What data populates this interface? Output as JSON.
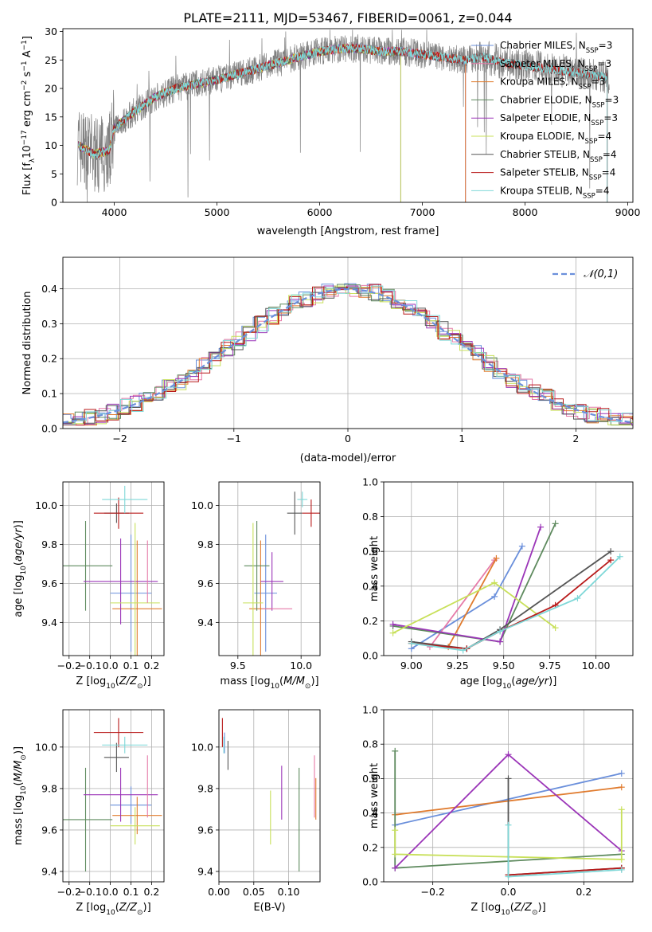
{
  "figure_title": "PLATE=2111, MJD=53467, FIBERID=0061, z=0.044",
  "colors": {
    "chabrier_miles": "#6a8fdb",
    "salpeter_miles": "#e67aa8",
    "kroupa_miles": "#e07b2e",
    "chabrier_elodie": "#5e8a5e",
    "salpeter_elodie": "#9b35b8",
    "kroupa_elodie": "#c8e05a",
    "chabrier_stelib": "#555555",
    "salpeter_stelib": "#b81a1a",
    "kroupa_stelib": "#7fd8d8",
    "data": "#808080",
    "normal_curve": "#6a8fdb"
  },
  "chart_data": [
    {
      "id": "spectrum",
      "type": "line",
      "xlabel": "wavelength [Angstrom, rest frame]",
      "ylabel": "Flux [f_λ10^-17 erg cm^-2 s^-1 A^-1]",
      "xlim": [
        3500,
        9050
      ],
      "ylim": [
        0,
        30.5
      ],
      "xticks": [
        4000,
        5000,
        6000,
        7000,
        8000,
        9000
      ],
      "yticks": [
        0,
        5,
        10,
        15,
        20,
        25,
        30
      ],
      "legend": [
        {
          "label": "Chabrier MILES, N",
          "sub": "SSP",
          "val": "=3",
          "color": "#6a8fdb"
        },
        {
          "label": "Salpeter MILES, N",
          "sub": "SSP",
          "val": "=3",
          "color": "#e67aa8"
        },
        {
          "label": "Kroupa MILES, N",
          "sub": "SSP",
          "val": "=3",
          "color": "#e07b2e"
        },
        {
          "label": "Chabrier ELODIE, N",
          "sub": "SSP",
          "val": "=3",
          "color": "#5e8a5e"
        },
        {
          "label": "Salpeter ELODIE, N",
          "sub": "SSP",
          "val": "=3",
          "color": "#9b35b8"
        },
        {
          "label": "Kroupa ELODIE, N",
          "sub": "SSP",
          "val": "=4",
          "color": "#c8e05a"
        },
        {
          "label": "Chabrier STELIB, N",
          "sub": "SSP",
          "val": "=4",
          "color": "#555555"
        },
        {
          "label": "Salpeter STELIB, N",
          "sub": "SSP",
          "val": "=4",
          "color": "#b81a1a"
        },
        {
          "label": "Kroupa STELIB, N",
          "sub": "SSP",
          "val": "=4",
          "color": "#7fd8d8"
        }
      ],
      "continuum": [
        [
          3650,
          10
        ],
        [
          3800,
          8.5
        ],
        [
          3950,
          9
        ],
        [
          4000,
          13
        ],
        [
          4200,
          16
        ],
        [
          4400,
          18.5
        ],
        [
          4600,
          20
        ],
        [
          4800,
          20.8
        ],
        [
          5000,
          21.5
        ],
        [
          5200,
          22.5
        ],
        [
          5400,
          23.5
        ],
        [
          5600,
          24.5
        ],
        [
          5800,
          25.5
        ],
        [
          6000,
          26.5
        ],
        [
          6200,
          27
        ],
        [
          6400,
          27
        ],
        [
          6600,
          26.5
        ],
        [
          6800,
          26.5
        ],
        [
          7000,
          26
        ],
        [
          7200,
          25.5
        ],
        [
          7400,
          25
        ],
        [
          7600,
          25.5
        ],
        [
          7800,
          24.5
        ],
        [
          8000,
          24
        ],
        [
          8200,
          23.5
        ],
        [
          8400,
          23
        ],
        [
          8600,
          22.5
        ],
        [
          8800,
          22
        ]
      ],
      "miles_range": [
        3650,
        7420
      ],
      "elodie_range": [
        3650,
        6790
      ],
      "stelib_range": [
        3650,
        8800
      ],
      "data_range": [
        3640,
        8820
      ]
    },
    {
      "id": "residuals",
      "type": "histogram",
      "xlabel": "(data-model)/error",
      "ylabel": "Normed distribution",
      "xlim": [
        -2.5,
        2.5
      ],
      "ylim": [
        0,
        0.49
      ],
      "xticks": [
        -2,
        -1,
        0,
        1,
        2
      ],
      "yticks": [
        0.0,
        0.1,
        0.2,
        0.3,
        0.4
      ],
      "legend": "𝒩(0,1)",
      "bin_width": 0.1
    },
    {
      "id": "age_vs_Z",
      "type": "errorbar",
      "xlabel": "Z [log10(Z/Z⊙)]",
      "ylabel": "age [log10(age/yr)]",
      "xlim": [
        -0.23,
        0.26
      ],
      "ylim": [
        9.23,
        10.12
      ],
      "xticks": [
        -0.2,
        -0.1,
        0.0,
        0.1,
        0.2
      ],
      "yticks": [
        9.4,
        9.6,
        9.8,
        10.0
      ],
      "points": [
        {
          "color": "#6a8fdb",
          "x": 0.1,
          "xerr": 0.1,
          "y": 9.55,
          "yerr": 0.3
        },
        {
          "color": "#e07b2e",
          "x": 0.13,
          "xerr": 0.12,
          "y": 9.47,
          "yerr": 0.35
        },
        {
          "color": "#5e8a5e",
          "x": -0.12,
          "xerr": 0.13,
          "y": 9.69,
          "yerr": 0.23
        },
        {
          "color": "#9b35b8",
          "x": 0.05,
          "xerr": 0.18,
          "y": 9.61,
          "yerr": 0.22
        },
        {
          "color": "#c8e05a",
          "x": 0.12,
          "xerr": 0.12,
          "y": 9.5,
          "yerr": 0.41
        },
        {
          "color": "#555555",
          "x": 0.03,
          "xerr": 0.06,
          "y": 9.96,
          "yerr": 0.05
        },
        {
          "color": "#b81a1a",
          "x": 0.04,
          "xerr": 0.12,
          "y": 9.96,
          "yerr": 0.08
        },
        {
          "color": "#7fd8d8",
          "x": 0.07,
          "xerr": 0.11,
          "y": 10.03,
          "yerr": 0.07
        },
        {
          "color": "#e67aa8",
          "x": 0.18,
          "xerr": 0.0,
          "y": 9.66,
          "yerr": 0.16
        }
      ]
    },
    {
      "id": "age_vs_mass",
      "type": "errorbar",
      "xlabel": "mass [log10(M/M⊙)]",
      "ylabel": "",
      "xlim": [
        9.35,
        10.15
      ],
      "ylim": [
        9.23,
        10.12
      ],
      "xticks": [
        9.5,
        10.0
      ],
      "yticks": [
        9.4,
        9.6,
        9.8,
        10.0
      ],
      "points": [
        {
          "color": "#6a8fdb",
          "x": 9.72,
          "xerr": 0.09,
          "y": 9.55,
          "yerr": 0.3
        },
        {
          "color": "#e07b2e",
          "x": 9.68,
          "xerr": 0.09,
          "y": 9.47,
          "yerr": 0.35
        },
        {
          "color": "#5e8a5e",
          "x": 9.65,
          "xerr": 0.1,
          "y": 9.69,
          "yerr": 0.23
        },
        {
          "color": "#9b35b8",
          "x": 9.77,
          "xerr": 0.09,
          "y": 9.61,
          "yerr": 0.15
        },
        {
          "color": "#c8e05a",
          "x": 9.62,
          "xerr": 0.08,
          "y": 9.5,
          "yerr": 0.41
        },
        {
          "color": "#555555",
          "x": 9.95,
          "xerr": 0.06,
          "y": 9.96,
          "yerr": 0.11
        },
        {
          "color": "#b81a1a",
          "x": 10.08,
          "xerr": 0.07,
          "y": 9.96,
          "yerr": 0.07
        },
        {
          "color": "#7fd8d8",
          "x": 10.01,
          "xerr": 0.04,
          "y": 10.03,
          "yerr": 0.04
        },
        {
          "color": "#e67aa8",
          "x": 9.81,
          "xerr": 0.12,
          "y": 9.47,
          "yerr": 0.0
        }
      ]
    },
    {
      "id": "mass_weight_vs_age",
      "type": "line",
      "xlabel": "age [log10(age/yr)]",
      "ylabel": "mass weight",
      "xlim": [
        8.85,
        10.2
      ],
      "ylim": [
        0.0,
        1.0
      ],
      "xticks": [
        9.0,
        9.25,
        9.5,
        9.75,
        10.0
      ],
      "yticks": [
        0.0,
        0.2,
        0.4,
        0.6,
        0.8,
        1.0
      ],
      "grid": true,
      "series": [
        {
          "color": "#6a8fdb",
          "x": [
            9.0,
            9.45,
            9.6
          ],
          "y": [
            0.04,
            0.34,
            0.63
          ]
        },
        {
          "color": "#e67aa8",
          "x": [
            9.1,
            9.45
          ],
          "y": [
            0.05,
            0.55
          ]
        },
        {
          "color": "#e07b2e",
          "x": [
            9.2,
            9.46
          ],
          "y": [
            0.05,
            0.56
          ]
        },
        {
          "color": "#5e8a5e",
          "x": [
            8.9,
            9.48,
            9.78
          ],
          "y": [
            0.17,
            0.08,
            0.76
          ]
        },
        {
          "color": "#9b35b8",
          "x": [
            8.9,
            9.48,
            9.7
          ],
          "y": [
            0.18,
            0.08,
            0.74
          ]
        },
        {
          "color": "#c8e05a",
          "x": [
            8.9,
            9.45,
            9.78
          ],
          "y": [
            0.13,
            0.42,
            0.16
          ]
        },
        {
          "color": "#555555",
          "x": [
            9.0,
            9.3,
            9.48,
            10.08
          ],
          "y": [
            0.08,
            0.04,
            0.15,
            0.6
          ]
        },
        {
          "color": "#b81a1a",
          "x": [
            9.0,
            9.3,
            9.48,
            9.78,
            10.08
          ],
          "y": [
            0.07,
            0.04,
            0.14,
            0.29,
            0.55
          ]
        },
        {
          "color": "#7fd8d8",
          "x": [
            9.0,
            9.28,
            9.48,
            9.9,
            10.13
          ],
          "y": [
            0.07,
            0.03,
            0.14,
            0.33,
            0.57
          ]
        }
      ]
    },
    {
      "id": "mass_vs_Z",
      "type": "errorbar",
      "xlabel": "Z [log10(Z/Z⊙)]",
      "ylabel": "mass [log10(M/M⊙)]",
      "xlim": [
        -0.23,
        0.26
      ],
      "ylim": [
        9.35,
        10.18
      ],
      "xticks": [
        -0.2,
        -0.1,
        0.0,
        0.1,
        0.2
      ],
      "yticks": [
        9.4,
        9.6,
        9.8,
        10.0
      ],
      "points": [
        {
          "color": "#6a8fdb",
          "x": 0.1,
          "xerr": 0.1,
          "y": 9.72,
          "yerr": 0.09
        },
        {
          "color": "#e07b2e",
          "x": 0.13,
          "xerr": 0.12,
          "y": 9.67,
          "yerr": 0.09
        },
        {
          "color": "#5e8a5e",
          "x": -0.12,
          "xerr": 0.13,
          "y": 9.65,
          "yerr": 0.25
        },
        {
          "color": "#9b35b8",
          "x": 0.05,
          "xerr": 0.18,
          "y": 9.77,
          "yerr": 0.13
        },
        {
          "color": "#c8e05a",
          "x": 0.12,
          "xerr": 0.12,
          "y": 9.62,
          "yerr": 0.09
        },
        {
          "color": "#555555",
          "x": 0.03,
          "xerr": 0.06,
          "y": 9.95,
          "yerr": 0.07
        },
        {
          "color": "#b81a1a",
          "x": 0.04,
          "xerr": 0.12,
          "y": 10.07,
          "yerr": 0.07
        },
        {
          "color": "#7fd8d8",
          "x": 0.07,
          "xerr": 0.11,
          "y": 10.01,
          "yerr": 0.04
        },
        {
          "color": "#e67aa8",
          "x": 0.18,
          "xerr": 0.0,
          "y": 9.81,
          "yerr": 0.15
        }
      ]
    },
    {
      "id": "mass_vs_EBV",
      "type": "errorbar",
      "xlabel": "E(B-V)",
      "ylabel": "",
      "xlim": [
        0.0,
        0.145
      ],
      "ylim": [
        9.35,
        10.18
      ],
      "xticks": [
        0.0,
        0.05,
        0.1
      ],
      "xticklabels": [
        "0.00",
        "0.05",
        "0.10"
      ],
      "yticks": [
        9.4,
        9.6,
        9.8,
        10.0
      ],
      "points": [
        {
          "color": "#6a8fdb",
          "x": 0.008,
          "xerr": 0.0,
          "y": 10.02,
          "yerr": 0.05
        },
        {
          "color": "#e67aa8",
          "x": 0.137,
          "xerr": 0.0,
          "y": 9.81,
          "yerr": 0.15
        },
        {
          "color": "#e07b2e",
          "x": 0.139,
          "xerr": 0.0,
          "y": 9.75,
          "yerr": 0.1
        },
        {
          "color": "#5e8a5e",
          "x": 0.115,
          "xerr": 0.0,
          "y": 9.65,
          "yerr": 0.25
        },
        {
          "color": "#9b35b8",
          "x": 0.09,
          "xerr": 0.0,
          "y": 9.78,
          "yerr": 0.13
        },
        {
          "color": "#c8e05a",
          "x": 0.074,
          "xerr": 0.0,
          "y": 9.66,
          "yerr": 0.13
        },
        {
          "color": "#555555",
          "x": 0.013,
          "xerr": 0.0,
          "y": 9.96,
          "yerr": 0.07
        },
        {
          "color": "#b81a1a",
          "x": 0.005,
          "xerr": 0.0,
          "y": 10.07,
          "yerr": 0.07
        },
        {
          "color": "#7fd8d8",
          "x": 0.007,
          "xerr": 0.0,
          "y": 10.01,
          "yerr": 0.04
        }
      ]
    },
    {
      "id": "mass_weight_vs_Z",
      "type": "line",
      "xlabel": "Z [log10(Z/Z⊙)]",
      "ylabel": "mass weight",
      "xlim": [
        -0.33,
        0.33
      ],
      "ylim": [
        0.0,
        1.0
      ],
      "xticks": [
        -0.2,
        0.0,
        0.2
      ],
      "yticks": [
        0.0,
        0.2,
        0.4,
        0.6,
        0.8,
        1.0
      ],
      "grid": true,
      "series": [
        {
          "color": "#6a8fdb",
          "x": [
            -0.3,
            0.3
          ],
          "y": [
            0.33,
            0.63
          ]
        },
        {
          "color": "#e07b2e",
          "x": [
            -0.3,
            0.3
          ],
          "y": [
            0.39,
            0.55
          ]
        },
        {
          "color": "#5e8a5e",
          "x": [
            -0.3,
            -0.3,
            0.3
          ],
          "y": [
            0.76,
            0.08,
            0.16
          ]
        },
        {
          "color": "#9b35b8",
          "x": [
            -0.3,
            0.0,
            0.3
          ],
          "y": [
            0.08,
            0.74,
            0.18
          ]
        },
        {
          "color": "#c8e05a",
          "x": [
            -0.3,
            -0.3,
            0.3,
            0.3
          ],
          "y": [
            0.3,
            0.16,
            0.13,
            0.42
          ]
        },
        {
          "color": "#555555",
          "x": [
            0.0,
            0.0,
            0.3
          ],
          "y": [
            0.6,
            0.04,
            0.08
          ]
        },
        {
          "color": "#b81a1a",
          "x": [
            0.0,
            0.3
          ],
          "y": [
            0.04,
            0.08
          ]
        },
        {
          "color": "#7fd8d8",
          "x": [
            0.0,
            0.0,
            0.3
          ],
          "y": [
            0.33,
            0.03,
            0.07
          ]
        }
      ]
    }
  ]
}
